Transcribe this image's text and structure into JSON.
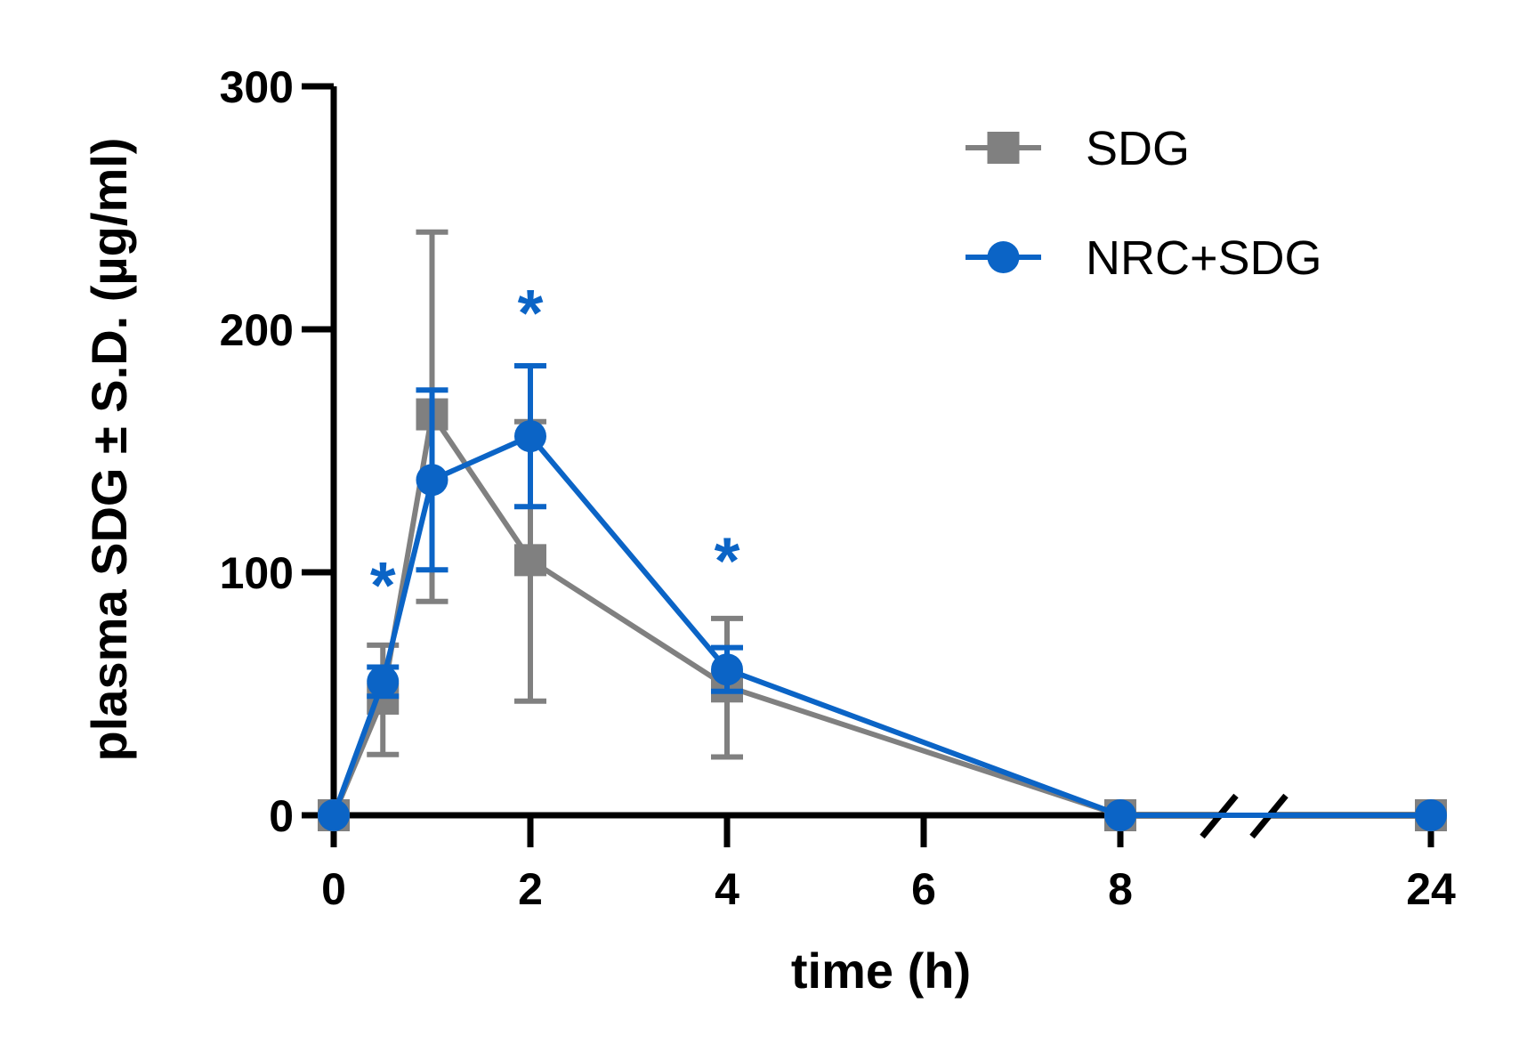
{
  "chart_data": {
    "type": "line",
    "title": "",
    "xlabel": "time (h)",
    "ylabel": "plasma SDG ± S.D. (µg/ml)",
    "ylim": [
      0,
      300
    ],
    "yticks": [
      0,
      100,
      200,
      300
    ],
    "xticks": [
      0,
      2,
      4,
      6,
      8,
      24
    ],
    "x_axis_break": "between 8 and 24",
    "legend_position": "top-right",
    "colors": {
      "SDG": "#808080",
      "NRC+SDG": "#0b64c6"
    },
    "series": [
      {
        "name": "SDG",
        "marker": "square",
        "x": [
          0,
          0.5,
          1,
          2,
          4,
          8,
          24
        ],
        "values": [
          0,
          48,
          165,
          105,
          53,
          0,
          0
        ],
        "sd_upper": [
          0,
          70,
          240,
          162,
          81,
          0,
          0
        ],
        "sd_lower": [
          0,
          25,
          88,
          47,
          24,
          0,
          0
        ]
      },
      {
        "name": "NRC+SDG",
        "marker": "circle",
        "x": [
          0,
          0.5,
          1,
          2,
          4,
          8,
          24
        ],
        "values": [
          0,
          55,
          138,
          156,
          60,
          0,
          0
        ],
        "sd_upper": [
          0,
          61,
          175,
          185,
          69,
          0,
          0
        ],
        "sd_lower": [
          0,
          49,
          101,
          127,
          51,
          0,
          0
        ]
      }
    ],
    "annotations": [
      {
        "text": "*",
        "x": 0.5,
        "y": 100
      },
      {
        "text": "*",
        "x": 2,
        "y": 212
      },
      {
        "text": "*",
        "x": 4,
        "y": 110
      }
    ]
  }
}
